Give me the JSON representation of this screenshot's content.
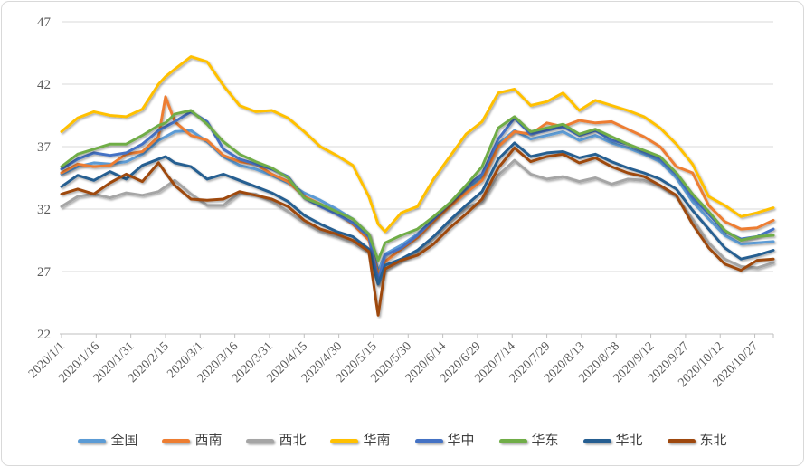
{
  "chart_data": {
    "type": "line",
    "title": "",
    "xlabel": "",
    "ylabel": "",
    "ylim": [
      22,
      47
    ],
    "y_ticks": [
      22,
      27,
      32,
      37,
      42,
      47
    ],
    "grid": "horizontal-only",
    "legend_position": "bottom",
    "x_tick_days": [
      0,
      15,
      30,
      45,
      60,
      75,
      90,
      105,
      120,
      135,
      150,
      165,
      180,
      195,
      210,
      225,
      240,
      255,
      270,
      285,
      300
    ],
    "x_tick_labels": [
      "2020/1/1",
      "2020/1/16",
      "2020/1/31",
      "2020/2/15",
      "2020/3/1",
      "2020/3/16",
      "2020/3/31",
      "2020/4/15",
      "2020/4/30",
      "2020/5/15",
      "2020/5/30",
      "2020/6/14",
      "2020/6/29",
      "2020/7/14",
      "2020/7/29",
      "2020/8/13",
      "2020/8/28",
      "2020/9/12",
      "2020/9/27",
      "2020/10/12",
      "2020/10/27"
    ],
    "days_total": 308,
    "sample_days": [
      0,
      7,
      14,
      21,
      28,
      35,
      42,
      45,
      49,
      56,
      63,
      70,
      77,
      84,
      91,
      98,
      105,
      112,
      119,
      126,
      133,
      137,
      140,
      147,
      154,
      161,
      168,
      175,
      182,
      189,
      196,
      203,
      210,
      217,
      224,
      231,
      238,
      245,
      252,
      259,
      266,
      273,
      280,
      287,
      294,
      301,
      308
    ],
    "series": [
      {
        "id": "quanguo",
        "name": "全国",
        "color": "#5B9BD5",
        "values": [
          34.8,
          35.4,
          35.7,
          35.6,
          35.8,
          36.4,
          37.5,
          37.8,
          38.2,
          38.3,
          37.4,
          36.2,
          35.5,
          35.2,
          34.7,
          34.1,
          33.3,
          32.7,
          32.0,
          31.2,
          30.0,
          27.0,
          28.4,
          29.1,
          30.0,
          31.2,
          32.4,
          33.5,
          34.6,
          37.2,
          38.3,
          37.6,
          37.9,
          38.2,
          37.5,
          37.9,
          37.3,
          36.9,
          36.4,
          35.8,
          34.5,
          32.6,
          31.2,
          29.9,
          29.2,
          29.3,
          29.4
        ]
      },
      {
        "id": "xinan",
        "name": "西南",
        "color": "#ED7D31",
        "values": [
          34.9,
          35.6,
          35.4,
          35.5,
          36.4,
          36.6,
          37.8,
          41.0,
          39.0,
          37.9,
          37.5,
          36.3,
          35.8,
          35.6,
          34.8,
          34.2,
          33.0,
          32.4,
          31.7,
          30.8,
          29.5,
          26.8,
          27.8,
          28.8,
          29.7,
          31.0,
          32.2,
          33.3,
          34.3,
          37.0,
          38.2,
          38.0,
          38.9,
          38.6,
          39.1,
          38.9,
          39.0,
          38.4,
          37.8,
          37.0,
          35.4,
          34.9,
          32.3,
          31.0,
          30.4,
          30.5,
          31.1
        ]
      },
      {
        "id": "xibei",
        "name": "西北",
        "color": "#A5A5A5",
        "values": [
          32.2,
          33.0,
          33.2,
          32.9,
          33.3,
          33.1,
          33.4,
          33.8,
          34.3,
          33.2,
          32.3,
          32.3,
          33.3,
          33.2,
          32.6,
          31.8,
          30.9,
          30.2,
          29.8,
          29.3,
          28.5,
          25.9,
          27.2,
          27.9,
          28.6,
          29.8,
          31.1,
          32.1,
          32.6,
          34.7,
          35.9,
          34.8,
          34.4,
          34.6,
          34.2,
          34.5,
          34.0,
          34.4,
          34.3,
          33.8,
          33.0,
          31.2,
          29.3,
          28.0,
          27.4,
          27.3,
          27.7
        ]
      },
      {
        "id": "huanan",
        "name": "华南",
        "color": "#FFC000",
        "values": [
          38.2,
          39.3,
          39.8,
          39.5,
          39.4,
          40.0,
          42.0,
          42.6,
          43.2,
          44.2,
          43.8,
          41.9,
          40.3,
          39.8,
          39.9,
          39.3,
          38.2,
          37.0,
          36.3,
          35.5,
          33.0,
          30.8,
          30.2,
          31.7,
          32.2,
          34.4,
          36.2,
          38.0,
          39.0,
          41.3,
          41.6,
          40.3,
          40.6,
          41.3,
          39.9,
          40.7,
          40.3,
          39.9,
          39.4,
          38.5,
          37.2,
          35.6,
          33.0,
          32.3,
          31.4,
          31.7,
          32.1
        ]
      },
      {
        "id": "huazhong",
        "name": "华中",
        "color": "#4472C4",
        "values": [
          35.2,
          36.0,
          36.5,
          36.3,
          36.5,
          37.2,
          38.3,
          38.6,
          39.0,
          39.8,
          39.0,
          36.8,
          36.0,
          35.6,
          35.2,
          34.6,
          32.9,
          32.2,
          31.6,
          30.9,
          29.8,
          26.3,
          28.3,
          28.9,
          29.9,
          31.2,
          32.5,
          33.8,
          34.8,
          37.6,
          39.3,
          38.0,
          38.3,
          38.6,
          37.9,
          38.3,
          37.5,
          37.2,
          36.6,
          36.0,
          34.8,
          32.9,
          31.6,
          30.2,
          29.6,
          29.8,
          30.4
        ]
      },
      {
        "id": "huadong",
        "name": "华东",
        "color": "#70AD47",
        "values": [
          35.4,
          36.4,
          36.8,
          37.2,
          37.2,
          37.9,
          38.7,
          38.9,
          39.6,
          39.9,
          38.8,
          37.4,
          36.4,
          35.8,
          35.3,
          34.5,
          32.9,
          32.4,
          31.8,
          31.2,
          30.0,
          27.9,
          29.3,
          29.9,
          30.4,
          31.4,
          32.5,
          33.9,
          35.4,
          38.5,
          39.4,
          38.2,
          38.5,
          38.8,
          38.0,
          38.4,
          37.8,
          37.2,
          36.7,
          36.2,
          34.9,
          33.2,
          31.8,
          30.3,
          29.5,
          29.8,
          29.9
        ]
      },
      {
        "id": "huabei",
        "name": "华北",
        "color": "#255E91",
        "values": [
          33.8,
          34.7,
          34.3,
          35.0,
          34.4,
          35.5,
          36.0,
          36.2,
          35.7,
          35.4,
          34.4,
          34.8,
          34.3,
          33.8,
          33.3,
          32.6,
          31.5,
          30.8,
          30.2,
          29.8,
          28.8,
          26.0,
          27.5,
          28.0,
          28.7,
          29.8,
          31.1,
          32.3,
          33.4,
          36.0,
          37.3,
          36.2,
          36.5,
          36.6,
          36.1,
          36.4,
          35.8,
          35.3,
          34.9,
          34.4,
          33.6,
          31.9,
          30.4,
          28.9,
          28.0,
          28.3,
          28.7
        ]
      },
      {
        "id": "dongbei",
        "name": "东北",
        "color": "#9E480E",
        "values": [
          33.2,
          33.6,
          33.2,
          34.1,
          34.8,
          34.2,
          35.7,
          34.9,
          33.9,
          32.8,
          32.7,
          32.8,
          33.4,
          33.1,
          32.8,
          32.2,
          31.1,
          30.4,
          30.0,
          29.5,
          28.6,
          23.5,
          27.2,
          27.9,
          28.3,
          29.2,
          30.5,
          31.6,
          32.8,
          35.3,
          36.9,
          35.8,
          36.2,
          36.4,
          35.7,
          36.1,
          35.4,
          34.9,
          34.6,
          33.9,
          33.1,
          30.8,
          28.9,
          27.6,
          27.1,
          27.9,
          28.0
        ]
      }
    ],
    "style": {
      "background": "#FFFFFF",
      "border_color": "#D9D9D9",
      "grid_color": "#D9D9D9",
      "axis_color": "#BFBFBF",
      "tick_label_color": "#595959",
      "legend_label_color": "#404040"
    }
  }
}
